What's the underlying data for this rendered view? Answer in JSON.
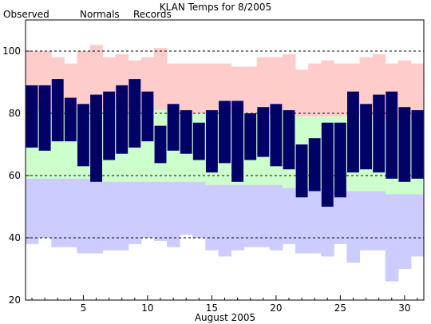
{
  "chart_data": {
    "type": "bar",
    "title": "KLAN Temps for 8/2005",
    "xlabel": "August 2005",
    "ylabel": "",
    "ylim": [
      20,
      110
    ],
    "xlim": [
      0.5,
      31.5
    ],
    "yticks": [
      20,
      40,
      60,
      80,
      100
    ],
    "xticks": [
      5,
      10,
      15,
      20,
      25,
      30
    ],
    "gridlines_y": [
      40,
      60,
      80,
      100
    ],
    "legend_position": "top-left",
    "colors": {
      "observed": "#000066",
      "normals": "#ccffcc",
      "records": "#ffcccc",
      "record_low_band": "#ccccff",
      "legend_observed": "#000066",
      "legend_normals": "#006600",
      "legend_records": "#ff9999"
    },
    "legend": [
      {
        "key": "observed",
        "label": "Observed"
      },
      {
        "key": "normals",
        "label": "Normals"
      },
      {
        "key": "records",
        "label": "Records"
      }
    ],
    "days": [
      1,
      2,
      3,
      4,
      5,
      6,
      7,
      8,
      9,
      10,
      11,
      12,
      13,
      14,
      15,
      16,
      17,
      18,
      19,
      20,
      21,
      22,
      23,
      24,
      25,
      26,
      27,
      28,
      29,
      30,
      31
    ],
    "series": [
      {
        "name": "Observed",
        "key": "observed_high",
        "values": [
          89,
          89,
          91,
          85,
          83,
          86,
          87,
          89,
          91,
          87,
          76,
          83,
          81,
          77,
          81,
          84,
          84,
          80,
          82,
          83,
          81,
          70,
          72,
          77,
          77,
          87,
          83,
          86,
          87,
          82,
          81
        ]
      },
      {
        "name": "Observed",
        "key": "observed_low",
        "values": [
          69,
          68,
          71,
          71,
          63,
          58,
          65,
          67,
          69,
          71,
          64,
          68,
          67,
          65,
          61,
          64,
          58,
          65,
          66,
          63,
          62,
          53,
          55,
          50,
          53,
          61,
          62,
          61,
          59,
          58,
          59
        ]
      },
      {
        "name": "Normals",
        "key": "normal_high",
        "values": [
          81,
          81,
          81,
          81,
          81,
          81,
          81,
          81,
          81,
          81,
          81,
          81,
          80,
          80,
          80,
          80,
          80,
          80,
          80,
          80,
          80,
          79,
          79,
          79,
          79,
          79,
          79,
          78,
          78,
          78,
          78
        ]
      },
      {
        "name": "Normals",
        "key": "normal_low",
        "values": [
          59,
          59,
          59,
          59,
          59,
          59,
          58,
          58,
          58,
          58,
          58,
          58,
          58,
          58,
          57,
          57,
          57,
          57,
          57,
          57,
          56,
          56,
          56,
          56,
          56,
          55,
          55,
          55,
          54,
          54,
          54
        ]
      },
      {
        "name": "Records",
        "key": "record_high",
        "values": [
          100,
          100,
          98,
          96,
          100,
          102,
          98,
          99,
          97,
          98,
          101,
          96,
          96,
          96,
          96,
          96,
          95,
          95,
          98,
          98,
          99,
          94,
          96,
          97,
          96,
          96,
          98,
          99,
          96,
          97,
          96
        ]
      },
      {
        "name": "Records",
        "key": "record_low",
        "values": [
          38,
          40,
          37,
          37,
          35,
          35,
          36,
          36,
          38,
          40,
          39,
          37,
          41,
          40,
          36,
          34,
          36,
          37,
          37,
          36,
          38,
          35,
          35,
          34,
          38,
          32,
          36,
          36,
          26,
          30,
          34
        ]
      }
    ]
  }
}
